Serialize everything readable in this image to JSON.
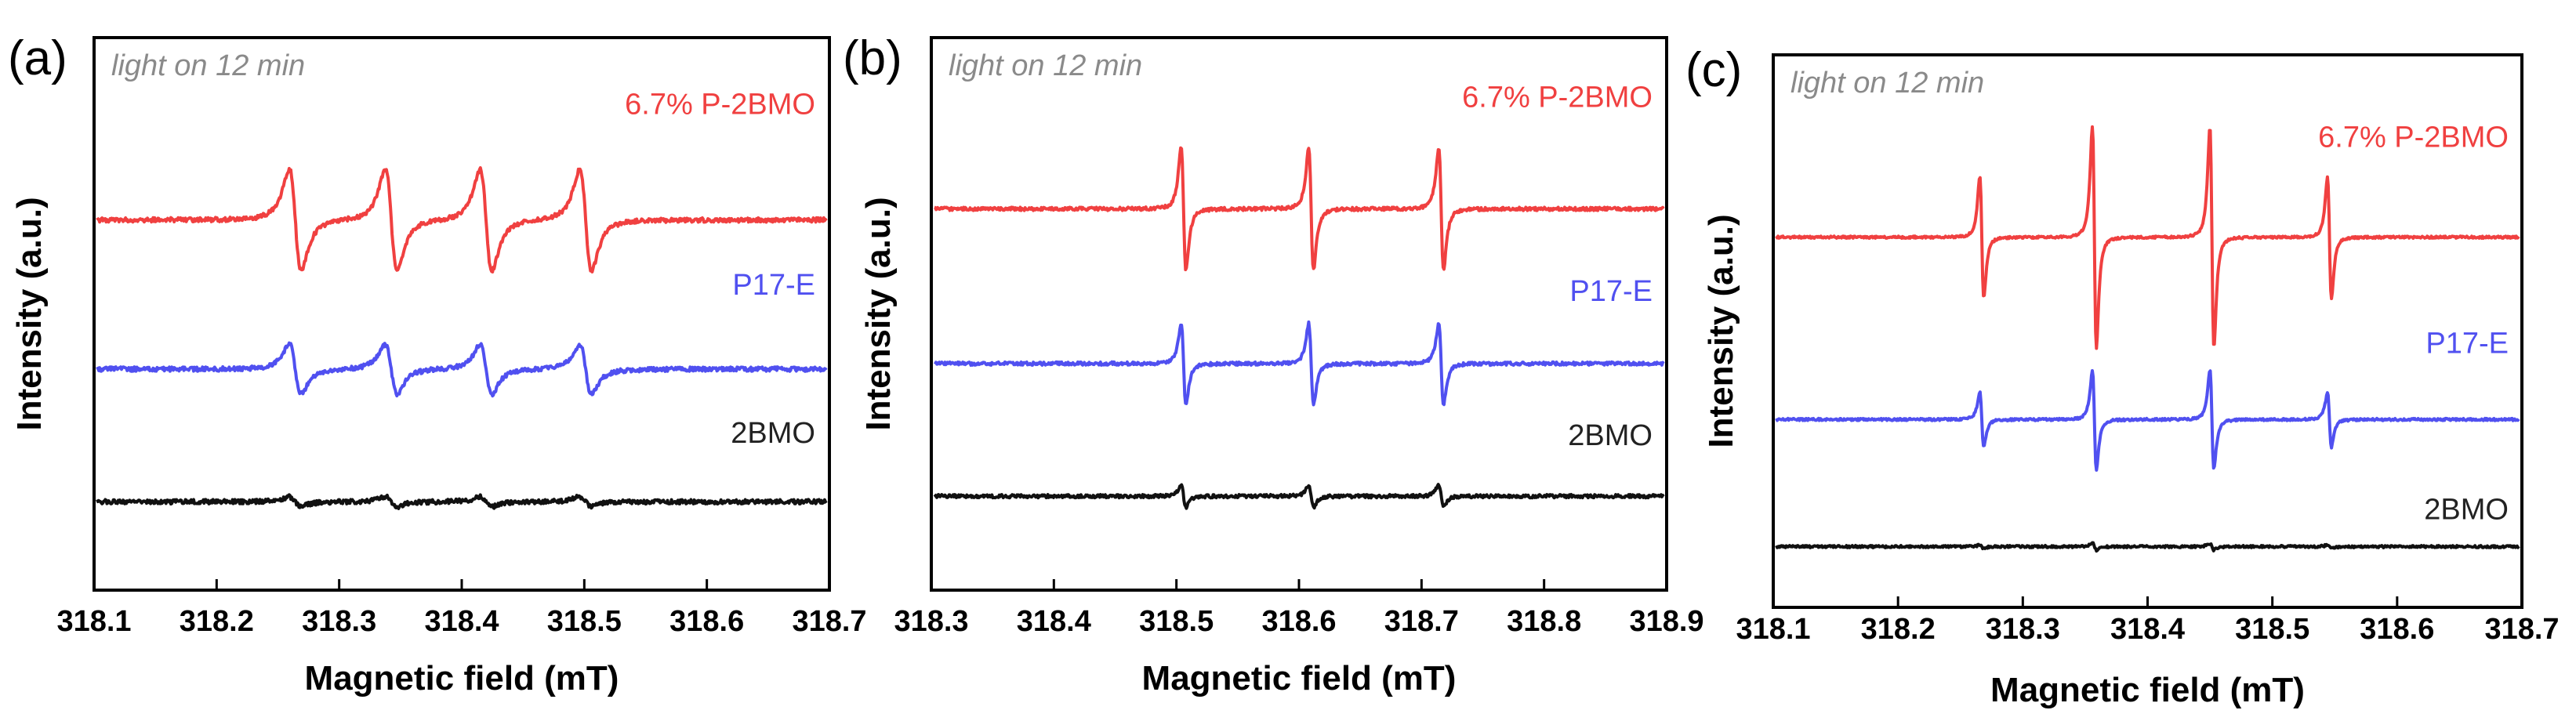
{
  "chart_data": [
    {
      "type": "line",
      "panel_label": "(a)",
      "annotation": "light on 12 min",
      "xlabel": "Magnetic field (mT)",
      "ylabel": "Intensity (a.u.)",
      "xlim": [
        318.1,
        318.7
      ],
      "xticks": [
        "318.1",
        "318.2",
        "318.3",
        "318.4",
        "318.5",
        "318.6",
        "318.7"
      ],
      "peaks": [
        318.263,
        318.342,
        318.42,
        318.502
      ],
      "linewidth": 0.0085,
      "series": [
        {
          "name": "6.7% P-2BMO",
          "color": "#f04040",
          "baseline": 0.33,
          "amplitude": 0.092,
          "noise": 0.004
        },
        {
          "name": "P17-E",
          "color": "#5050f0",
          "baseline": 0.6,
          "amplitude": 0.045,
          "noise": 0.004
        },
        {
          "name": "2BMO",
          "color": "#111111",
          "baseline": 0.84,
          "amplitude": 0.009,
          "noise": 0.004
        }
      ]
    },
    {
      "type": "line",
      "panel_label": "(b)",
      "annotation": "light on 12 min",
      "xlabel": "Magnetic field (mT)",
      "ylabel": "Intensity (a.u.)",
      "xlim": [
        318.3,
        318.9
      ],
      "xticks": [
        "318.3",
        "318.4",
        "318.5",
        "318.6",
        "318.7",
        "318.8",
        "318.9"
      ],
      "peaks": [
        318.505,
        318.61,
        318.717
      ],
      "linewidth": 0.0035,
      "series": [
        {
          "name": "6.7% P-2BMO",
          "color": "#f04040",
          "baseline": 0.31,
          "amplitude": 0.11,
          "noise": 0.003
        },
        {
          "name": "P17-E",
          "color": "#5050f0",
          "baseline": 0.59,
          "amplitude": 0.073,
          "noise": 0.003
        },
        {
          "name": "2BMO",
          "color": "#111111",
          "baseline": 0.83,
          "amplitude": 0.02,
          "noise": 0.003
        }
      ]
    },
    {
      "type": "line",
      "panel_label": "(c)",
      "annotation": "light on 12 min",
      "xlabel": "Magnetic field (mT)",
      "ylabel": "Intensity (a.u.)",
      "xlim": [
        318.1,
        318.7
      ],
      "xticks": [
        "318.1",
        "318.2",
        "318.3",
        "318.4",
        "318.5",
        "318.6",
        "318.7"
      ],
      "peaks": [
        318.266,
        318.357,
        318.452,
        318.547
      ],
      "linewidth": 0.0028,
      "peak_weights": [
        0.55,
        1.0,
        1.0,
        0.55
      ],
      "series": [
        {
          "name": "6.7% P-2BMO",
          "color": "#f04040",
          "baseline": 0.33,
          "amplitude": 0.2,
          "noise": 0.002
        },
        {
          "name": "P17-E",
          "color": "#5050f0",
          "baseline": 0.66,
          "amplitude": 0.09,
          "noise": 0.002
        },
        {
          "name": "2BMO",
          "color": "#111111",
          "baseline": 0.89,
          "amplitude": 0.006,
          "noise": 0.002
        }
      ]
    }
  ]
}
